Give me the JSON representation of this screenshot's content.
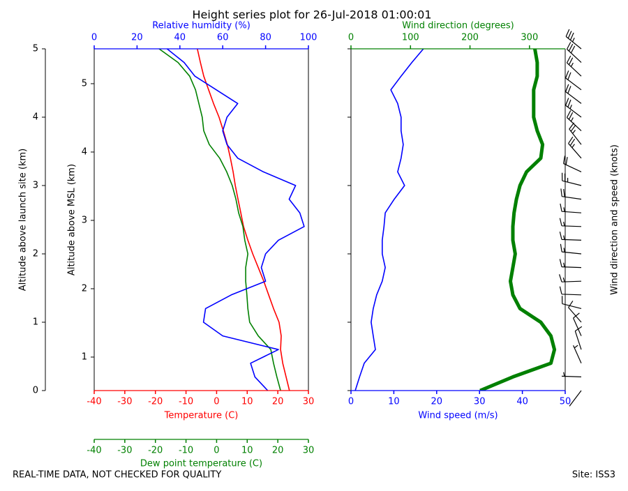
{
  "title": "Height series plot for 26-Jul-2018 01:00:01",
  "footer_left": "REAL-TIME DATA, NOT CHECKED FOR QUALITY",
  "footer_right": "Site: ISS3",
  "chart_data": [
    {
      "type": "line",
      "y": [
        0,
        0.2,
        0.4,
        0.6,
        0.8,
        1.0,
        1.2,
        1.4,
        1.6,
        1.8,
        2.0,
        2.2,
        2.4,
        2.6,
        2.8,
        3.0,
        3.2,
        3.4,
        3.6,
        3.8,
        4.0,
        4.2,
        4.4,
        4.6,
        4.8,
        5.0
      ],
      "ylim": [
        0,
        5
      ],
      "yticks": [
        0,
        1,
        2,
        3,
        4,
        5
      ],
      "ylabel": "Altitude above launch site (km)",
      "y2label": "Altitude above MSL (km)",
      "y2lim": [
        0.51,
        5.51
      ],
      "y2ticks": [
        1,
        2,
        3,
        4,
        5
      ],
      "xlim": [
        -40,
        30
      ],
      "xticks": [
        -40,
        -30,
        -20,
        -10,
        0,
        10,
        20,
        30
      ],
      "x2lim": [
        0,
        100
      ],
      "x2ticks": [
        0,
        20,
        40,
        60,
        80,
        100
      ],
      "x3lim": [
        -40,
        30
      ],
      "x3ticks": [
        -40,
        -30,
        -20,
        -10,
        0,
        10,
        20,
        30
      ],
      "series": [
        {
          "name": "Temperature (C)",
          "color": "#ff0000",
          "axis": "x",
          "values": [
            23.8,
            22.7,
            21.6,
            20.9,
            21.1,
            20.4,
            18.6,
            17,
            15.4,
            13.6,
            11.8,
            10.2,
            8.8,
            7.9,
            7,
            6.1,
            5.4,
            4.5,
            3.5,
            2.2,
            0.8,
            -1,
            -2.6,
            -4.2,
            -5.3,
            -6.3
          ]
        },
        {
          "name": "Dew point temperature (C)",
          "color": "#008000",
          "axis": "x3",
          "values": [
            20.9,
            19.7,
            18.6,
            17.7,
            13.6,
            10.8,
            10.2,
            9.9,
            9.5,
            9.5,
            10.2,
            9.2,
            8.6,
            7.2,
            6.3,
            5.1,
            3.3,
            1,
            -2.4,
            -4.2,
            -4.7,
            -5.8,
            -6.9,
            -8.8,
            -12.6,
            -18.8
          ]
        },
        {
          "name": "Relative humidity (%)",
          "color": "#0000ff",
          "axis": "x2",
          "values": [
            81,
            75,
            73,
            86,
            60,
            51,
            52,
            64,
            80,
            78,
            80,
            86,
            98,
            96,
            91,
            94,
            79,
            67,
            62,
            60,
            62,
            67,
            57,
            47,
            42,
            34
          ]
        }
      ]
    },
    {
      "type": "line",
      "y": [
        0,
        0.2,
        0.4,
        0.6,
        0.8,
        1.0,
        1.2,
        1.4,
        1.6,
        1.8,
        2.0,
        2.2,
        2.4,
        2.6,
        2.8,
        3.0,
        3.2,
        3.4,
        3.6,
        3.8,
        4.0,
        4.2,
        4.4,
        4.6,
        4.8,
        5.0
      ],
      "ylim": [
        0,
        5
      ],
      "yticks": [
        0,
        1,
        2,
        3,
        4,
        5
      ],
      "xlim": [
        0,
        50
      ],
      "xticks": [
        0,
        10,
        20,
        30,
        40,
        50
      ],
      "x2lim": [
        0,
        360
      ],
      "x2ticks": [
        0,
        100,
        200,
        300
      ],
      "barb_label": "Wind direction and speed (knots)",
      "series": [
        {
          "name": "Wind speed (m/s)",
          "color": "#0000ff",
          "axis": "x",
          "values": [
            1,
            2,
            3.1,
            5.7,
            5.2,
            4.7,
            5.2,
            6,
            7.3,
            8,
            7.3,
            7.3,
            7.7,
            8,
            10.1,
            12.5,
            10.9,
            11.7,
            12.2,
            11.7,
            11.7,
            10.9,
            9.3,
            11.7,
            14.2,
            16.9
          ]
        },
        {
          "name": "Wind direction (degrees)",
          "color": "#008000",
          "axis": "x2",
          "values": [
            217,
            272,
            336,
            342,
            336,
            319,
            284,
            272,
            268,
            272,
            276,
            272,
            272,
            274,
            278,
            284,
            295,
            319,
            322,
            313,
            307,
            307,
            307,
            313,
            313,
            309
          ]
        }
      ]
    }
  ]
}
